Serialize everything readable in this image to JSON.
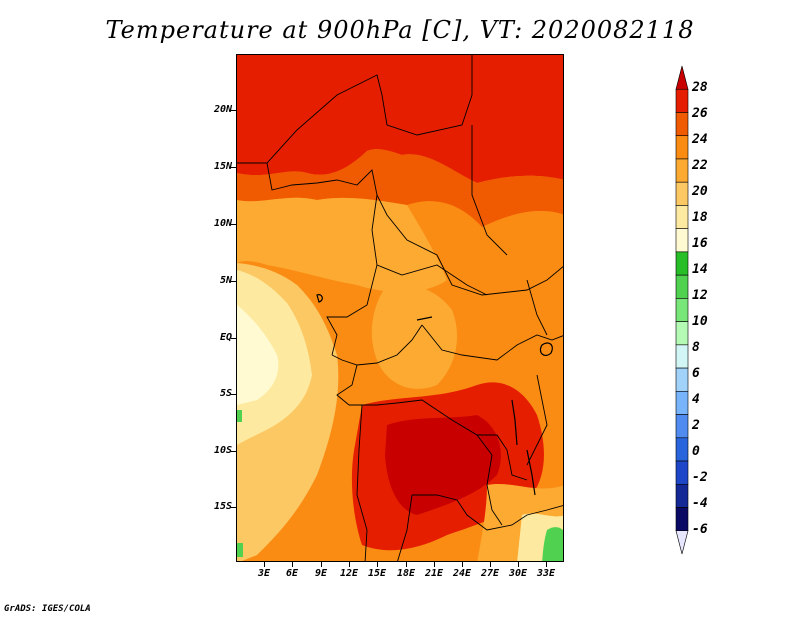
{
  "title": "Temperature at 900hPa [C], VT: 2020082118",
  "footer": "GrADS: IGES/COLA",
  "lat_labels": [
    "20N",
    "15N",
    "10N",
    "5N",
    "EQ",
    "5S",
    "10S",
    "15S"
  ],
  "lon_labels": [
    "3E",
    "6E",
    "9E",
    "12E",
    "15E",
    "18E",
    "21E",
    "24E",
    "27E",
    "30E",
    "33E"
  ],
  "colorbar": {
    "labels": [
      "28",
      "26",
      "24",
      "22",
      "20",
      "18",
      "16",
      "14",
      "12",
      "10",
      "8",
      "6",
      "4",
      "2",
      "0",
      "-2",
      "-4",
      "-6"
    ],
    "colors": [
      "#c80000",
      "#e61e00",
      "#f05a00",
      "#fa8c14",
      "#fcaa32",
      "#fcc864",
      "#fdeaa0",
      "#fffad2",
      "#28be28",
      "#50d250",
      "#78e678",
      "#b4fab4",
      "#d2f5f5",
      "#a0d2fa",
      "#78b4fa",
      "#508cf0",
      "#2864dc",
      "#1e46c8",
      "#142896",
      "#0a0a64",
      "#e6e6ff"
    ]
  }
}
